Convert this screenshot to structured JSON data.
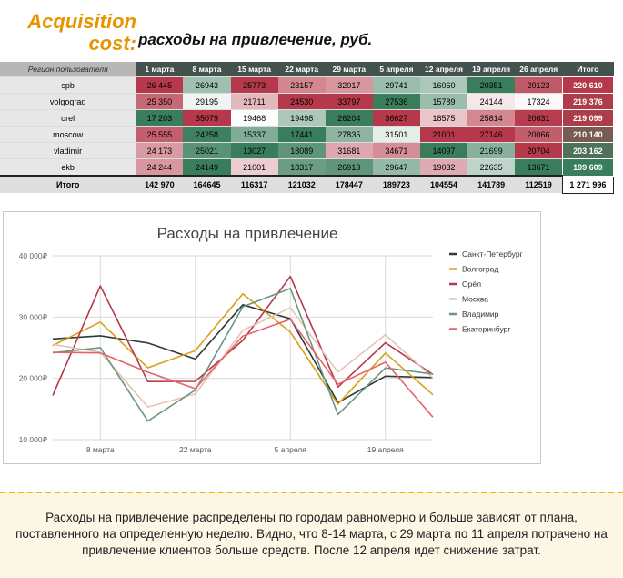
{
  "header": {
    "title_main": "Acquisition cost:",
    "title_sub": "расходы на привлечение, руб."
  },
  "table": {
    "columns": [
      "Регион пользователя",
      "1 марта",
      "8 марта",
      "15 марта",
      "22 марта",
      "29 марта",
      "5 апреля",
      "12 апреля",
      "19 апреля",
      "26 апреля",
      "Итого"
    ],
    "rows": [
      {
        "region": "spb",
        "cells": [
          "26 445",
          "26943",
          "25773",
          "23157",
          "32017",
          "29741",
          "16060",
          "20351",
          "20123"
        ],
        "total": "220 610",
        "values": [
          26445,
          26943,
          25773,
          23157,
          32017,
          29741,
          16060,
          20351,
          20123
        ],
        "total_value": 220610
      },
      {
        "region": "volgograd",
        "cells": [
          "25 350",
          "29195",
          "21711",
          "24530",
          "33797",
          "27536",
          "15789",
          "24144",
          "17324"
        ],
        "total": "219 376",
        "values": [
          25350,
          29195,
          21711,
          24530,
          33797,
          27536,
          15789,
          24144,
          17324
        ],
        "total_value": 219376
      },
      {
        "region": "orel",
        "cells": [
          "17 203",
          "35079",
          "19468",
          "19498",
          "26204",
          "36627",
          "18575",
          "25814",
          "20631"
        ],
        "total": "219 099",
        "values": [
          17203,
          35079,
          19468,
          19498,
          26204,
          36627,
          18575,
          25814,
          20631
        ],
        "total_value": 219099
      },
      {
        "region": "moscow",
        "cells": [
          "25 555",
          "24258",
          "15337",
          "17441",
          "27835",
          "31501",
          "21001",
          "27146",
          "20066"
        ],
        "total": "210 140",
        "values": [
          25555,
          24258,
          15337,
          17441,
          27835,
          31501,
          21001,
          27146,
          20066
        ],
        "total_value": 210140
      },
      {
        "region": "vladimir",
        "cells": [
          "24 173",
          "25021",
          "13027",
          "18089",
          "31681",
          "34671",
          "14097",
          "21699",
          "20704"
        ],
        "total": "203 162",
        "values": [
          24173,
          25021,
          13027,
          18089,
          31681,
          34671,
          14097,
          21699,
          20704
        ],
        "total_value": 203162
      },
      {
        "region": "ekb",
        "cells": [
          "24 244",
          "24149",
          "21001",
          "18317",
          "26913",
          "29647",
          "19032",
          "22635",
          "13671"
        ],
        "total": "199 609",
        "values": [
          24244,
          24149,
          21001,
          18317,
          26913,
          29647,
          19032,
          22635,
          13671
        ],
        "total_value": 199609
      }
    ],
    "totals_label": "Итого",
    "totals": [
      "142 970",
      "164645",
      "116317",
      "121032",
      "178447",
      "189723",
      "104554",
      "141789",
      "112519"
    ],
    "grand_total": "1 271 996",
    "colors": {
      "low": "#3a7d5c",
      "mid": "#ffffff",
      "high": "#b5394a"
    }
  },
  "chart_data": {
    "type": "line",
    "title": "Расходы на привлечение",
    "x": [
      "2021-03-01",
      "2021-03-08",
      "2021-03-15",
      "2021-03-22",
      "2021-03-29",
      "2021-04-05",
      "2021-04-12",
      "2021-04-19",
      "2021-04-26"
    ],
    "x_ticks": [
      "8 марта",
      "22 марта",
      "5 апреля",
      "19 апреля"
    ],
    "y_ticks": [
      "10 000₽",
      "20 000₽",
      "30 000₽",
      "40 000₽"
    ],
    "ylim": [
      10000,
      40000
    ],
    "grid": true,
    "legend_position": "right",
    "series": [
      {
        "name": "Санкт-Петербург",
        "color": "#2e3b37",
        "values": [
          26445,
          26943,
          25773,
          23157,
          32017,
          29741,
          16060,
          20351,
          20123
        ]
      },
      {
        "name": "Волгоград",
        "color": "#d9a017",
        "values": [
          25350,
          29195,
          21711,
          24530,
          33797,
          27536,
          15789,
          24144,
          17324
        ]
      },
      {
        "name": "Орёл",
        "color": "#b5394a",
        "values": [
          17203,
          35079,
          19468,
          19498,
          26204,
          36627,
          18575,
          25814,
          20631
        ]
      },
      {
        "name": "Москва",
        "color": "#e6c4b2",
        "values": [
          25555,
          24258,
          15337,
          17441,
          27835,
          31501,
          21001,
          27146,
          20066
        ]
      },
      {
        "name": "Владимир",
        "color": "#6b9780",
        "values": [
          24173,
          25021,
          13027,
          18089,
          31681,
          34671,
          14097,
          21699,
          20704
        ]
      },
      {
        "name": "Екатеринбург",
        "color": "#e8626b",
        "values": [
          24244,
          24149,
          21001,
          18317,
          26913,
          29647,
          19032,
          22635,
          13671
        ]
      }
    ]
  },
  "note": {
    "text": "Расходы на привлечение распределены по городам равномерно и больше зависят от плана, поставленного на определенную неделю. Видно, что 8-14 марта, с 29 марта по 11 апреля потрачено на привлечение клиентов больше средств. После 12 апреля идет снижение затрат."
  }
}
